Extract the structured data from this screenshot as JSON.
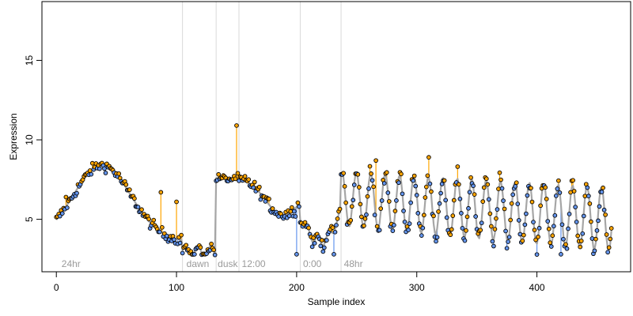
{
  "chart_data": {
    "type": "line",
    "title": "",
    "xlabel": "Sample index",
    "ylabel": "Expression",
    "xlim": [
      -12,
      478
    ],
    "ylim": [
      1.7,
      18.7
    ],
    "x_ticks": [
      0,
      100,
      200,
      300,
      400
    ],
    "y_ticks": [
      5,
      10,
      15
    ],
    "grid": false,
    "legend": "none",
    "vertical_markers": [
      105,
      133,
      152,
      203,
      237
    ],
    "region_labels": [
      {
        "x": 3,
        "text": "24hr"
      },
      {
        "x": 107,
        "text": "dawn"
      },
      {
        "x": 133,
        "text": "dusk"
      },
      {
        "x": 153,
        "text": "12:00"
      },
      {
        "x": 204,
        "text": "0:00"
      },
      {
        "x": 238,
        "text": "48hr"
      }
    ],
    "colors": {
      "fit": "#a6a6a6",
      "residual_above": "#ffa500",
      "residual_below": "#6495ed",
      "marker_line": "#d9d9d9"
    },
    "segments": [
      {
        "x_start": 0,
        "x_end": 104,
        "min": 3.6,
        "max": 8.4,
        "center": 38,
        "width": 24
      },
      {
        "x_start": 105,
        "x_end": 132,
        "min": 2.9,
        "max": 3.4
      },
      {
        "x_start": 133,
        "x_end": 202,
        "start_value": 7.8,
        "wave": true
      },
      {
        "x_start": 203,
        "x_end": 236,
        "min": 3.4,
        "max": 5.4
      },
      {
        "x_start": 237,
        "x_end": 462,
        "period": 12,
        "min_start": 4.6,
        "max_start": 8.0,
        "min_end": 3.0,
        "max_end": 7.0
      }
    ],
    "outliers": [
      {
        "x": 8,
        "y": 6.4
      },
      {
        "x": 87,
        "y": 6.7
      },
      {
        "x": 100,
        "y": 6.1
      },
      {
        "x": 150,
        "y": 10.9
      },
      {
        "x": 200,
        "y": 2.8
      },
      {
        "x": 231,
        "y": 2.8
      },
      {
        "x": 266,
        "y": 8.7
      },
      {
        "x": 310,
        "y": 8.9
      },
      {
        "x": 420,
        "y": 2.8
      }
    ]
  }
}
